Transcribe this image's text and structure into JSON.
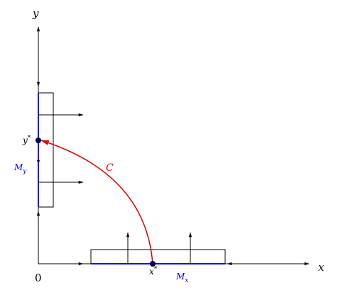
{
  "axes": {
    "x": "x",
    "y": "y",
    "origin": "0"
  },
  "points": {
    "y_star": {
      "base": "y",
      "sup": "*"
    },
    "x_star": {
      "base": "x",
      "sup": "*"
    }
  },
  "sets": {
    "M_y": {
      "base": "M",
      "sub": "y"
    },
    "M_x": {
      "base": "M",
      "sub": "x"
    }
  },
  "curve": {
    "label": "C"
  }
}
